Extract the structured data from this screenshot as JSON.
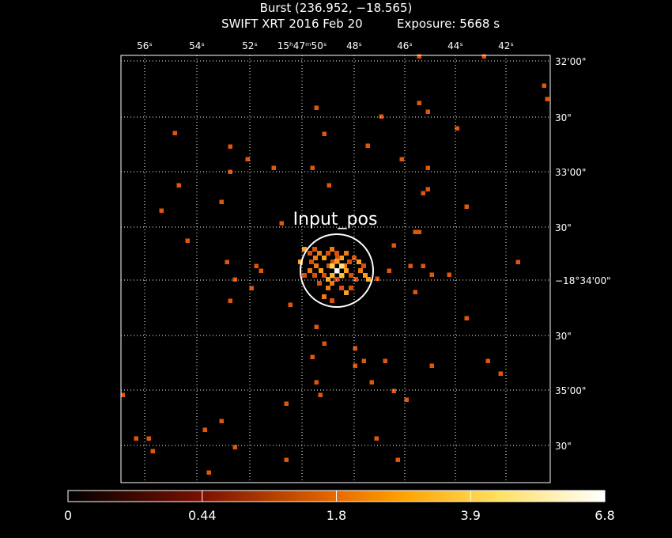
{
  "header": {
    "title": "Burst (236.952, −18.565)",
    "instrument": "SWIFT XRT",
    "date": "2016 Feb 20",
    "exposure": "Exposure: 5668 s"
  },
  "image": {
    "ra_ticks": [
      "56ˢ",
      "54ˢ",
      "52ˢ",
      "15ʰ47ᵐ50ˢ",
      "48ˢ",
      "46ˢ",
      "44ˢ",
      "42ˢ"
    ],
    "dec_ticks": [
      "32'00\"",
      "30\"",
      "33'00\"",
      "30\"",
      "−18°34'00\"",
      "30\"",
      "35'00\"",
      "30\""
    ],
    "marker_label": "Input_pos"
  },
  "colorbar": {
    "ticks": [
      0,
      0.44,
      1.8,
      3.9,
      6.8
    ]
  }
}
